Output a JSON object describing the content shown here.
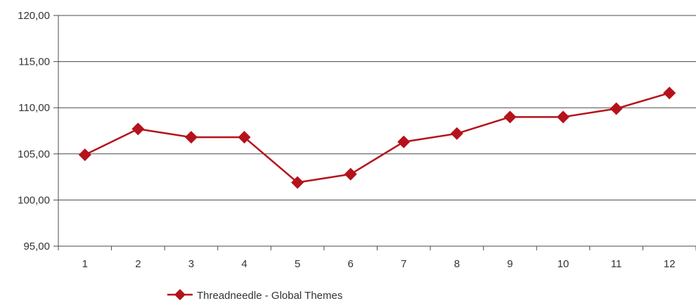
{
  "chart_data": {
    "type": "line",
    "title": "",
    "xlabel": "",
    "ylabel": "",
    "categories": [
      "1",
      "2",
      "3",
      "4",
      "5",
      "6",
      "7",
      "8",
      "9",
      "10",
      "11",
      "12"
    ],
    "series": [
      {
        "name": "Threadneedle - Global Themes",
        "color": "#b5121b",
        "marker": "diamond",
        "values": [
          104.9,
          107.7,
          106.8,
          106.8,
          101.9,
          102.8,
          106.3,
          107.2,
          109.0,
          109.0,
          109.9,
          111.6
        ]
      }
    ],
    "ylim": [
      95,
      120
    ],
    "yticks": [
      "95,00",
      "100,00",
      "105,00",
      "110,00",
      "115,00",
      "120,00"
    ],
    "grid": true,
    "legend_position": "bottom"
  }
}
